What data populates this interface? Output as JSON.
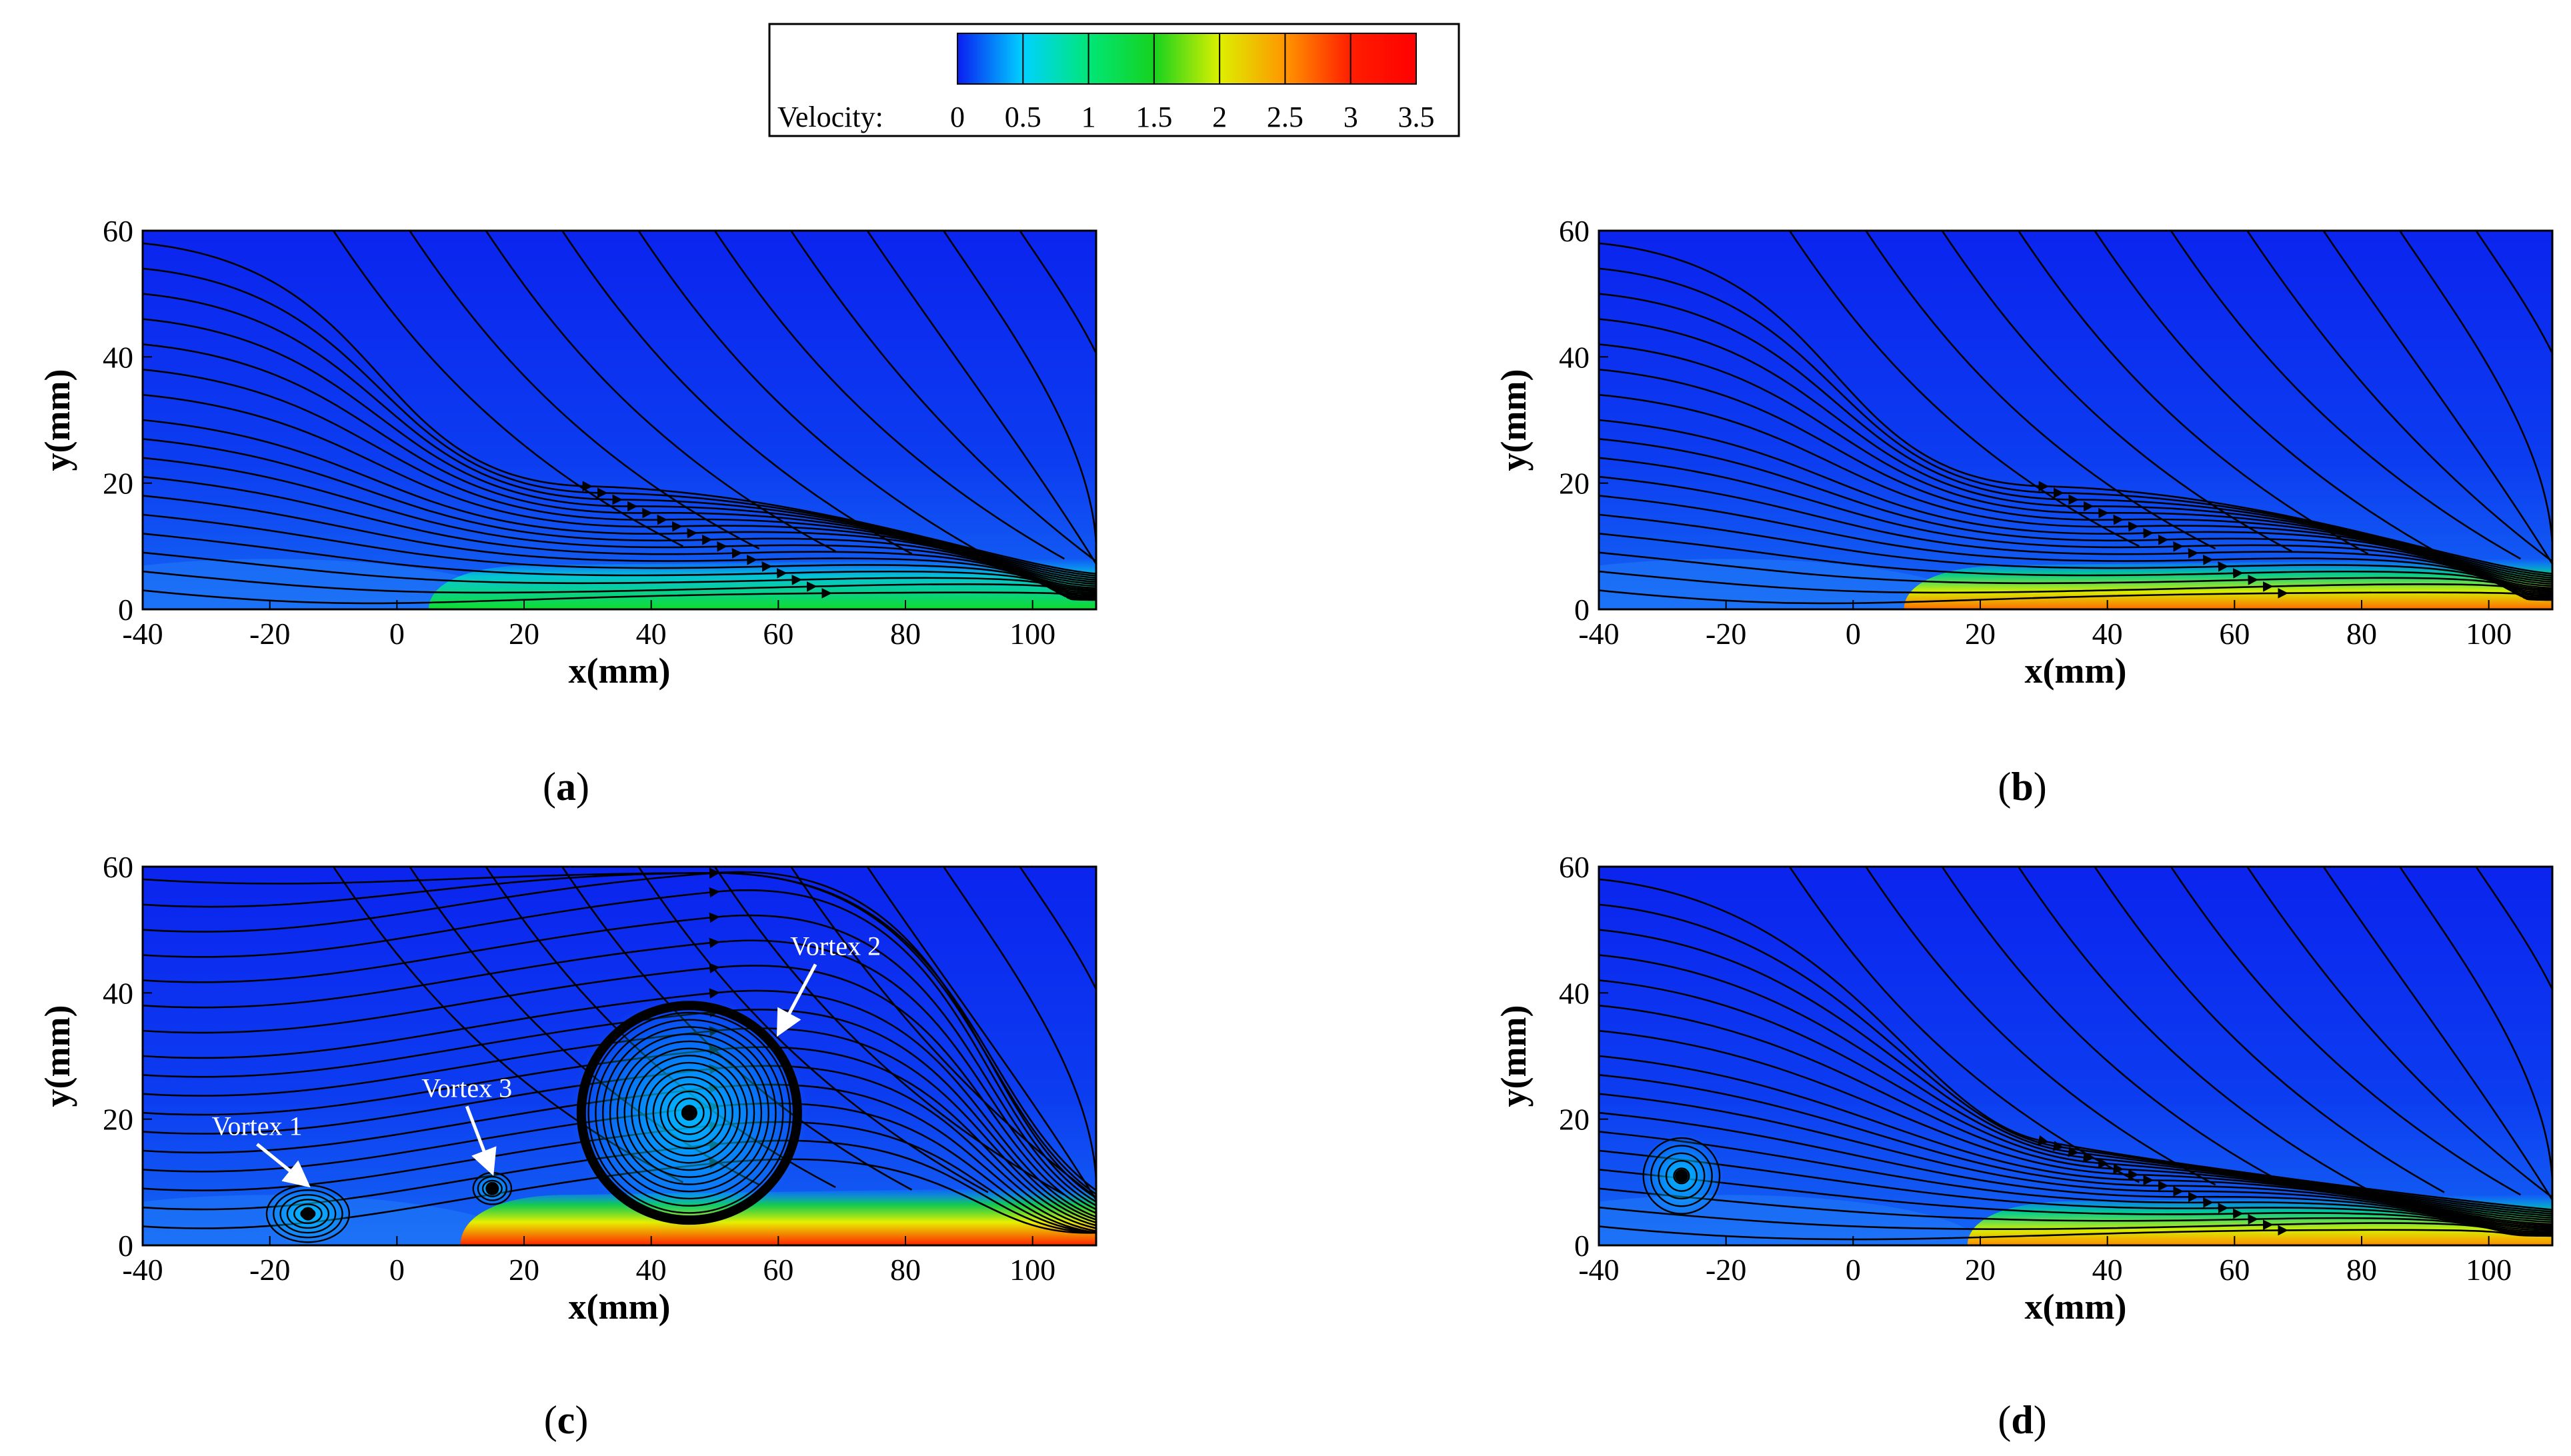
{
  "colorbar": {
    "label": "Velocity:",
    "ticks": [
      "0",
      "0.5",
      "1",
      "1.5",
      "2",
      "2.5",
      "3",
      "3.5"
    ],
    "range": [
      0,
      3.5
    ],
    "colors": [
      "#0a1ef0",
      "#00d2ff",
      "#00e678",
      "#16d21e",
      "#dcf000",
      "#ff9600",
      "#ff1e00",
      "#ff0000"
    ]
  },
  "chart_data": [
    {
      "type": "heatmap",
      "panel": "a",
      "panel_label": "a",
      "xlabel": "x(mm)",
      "ylabel": "y(mm)",
      "xlim": [
        -40,
        110
      ],
      "ylim": [
        0,
        60
      ],
      "xticks": [
        "-40",
        "-20",
        "0",
        "20",
        "40",
        "60",
        "80",
        "100"
      ],
      "yticks": [
        "0",
        "20",
        "40",
        "60"
      ],
      "jet": {
        "x_start": 5,
        "x_end": 110,
        "peak_velocity": 1.4
      },
      "vortices": []
    },
    {
      "type": "heatmap",
      "panel": "b",
      "panel_label": "b",
      "xlabel": "x(mm)",
      "ylabel": "y(mm)",
      "xlim": [
        -40,
        110
      ],
      "ylim": [
        0,
        60
      ],
      "xticks": [
        "-40",
        "-20",
        "0",
        "20",
        "40",
        "60",
        "80",
        "100"
      ],
      "yticks": [
        "0",
        "20",
        "40",
        "60"
      ],
      "jet": {
        "x_start": 8,
        "x_end": 110,
        "peak_velocity": 2.6
      },
      "vortices": []
    },
    {
      "type": "heatmap",
      "panel": "c",
      "panel_label": "c",
      "xlabel": "x(mm)",
      "ylabel": "y(mm)",
      "xlim": [
        -40,
        110
      ],
      "ylim": [
        0,
        60
      ],
      "xticks": [
        "-40",
        "-20",
        "0",
        "20",
        "40",
        "60",
        "80",
        "100"
      ],
      "yticks": [
        "0",
        "20",
        "40",
        "60"
      ],
      "jet": {
        "x_start": 10,
        "x_end": 110,
        "peak_velocity": 3.2
      },
      "vortices": [
        {
          "label": "Vortex 1",
          "x": -14,
          "y": 5,
          "rx": 6.5,
          "ry": 4.5
        },
        {
          "label": "Vortex 3",
          "x": 15,
          "y": 9,
          "rx": 3,
          "ry": 2.5
        },
        {
          "label": "Vortex 2",
          "x": 46,
          "y": 21,
          "rx": 17,
          "ry": 17
        }
      ]
    },
    {
      "type": "heatmap",
      "panel": "d",
      "panel_label": "d",
      "xlabel": "x(mm)",
      "ylabel": "y(mm)",
      "xlim": [
        -40,
        110
      ],
      "ylim": [
        0,
        60
      ],
      "xticks": [
        "-40",
        "-20",
        "0",
        "20",
        "40",
        "60",
        "80",
        "100"
      ],
      "yticks": [
        "0",
        "20",
        "40",
        "60"
      ],
      "jet": {
        "x_start": 18,
        "x_end": 110,
        "peak_velocity": 2.7
      },
      "vortices": [
        {
          "label": "",
          "x": -27,
          "y": 11,
          "rx": 6,
          "ry": 6
        }
      ]
    }
  ]
}
